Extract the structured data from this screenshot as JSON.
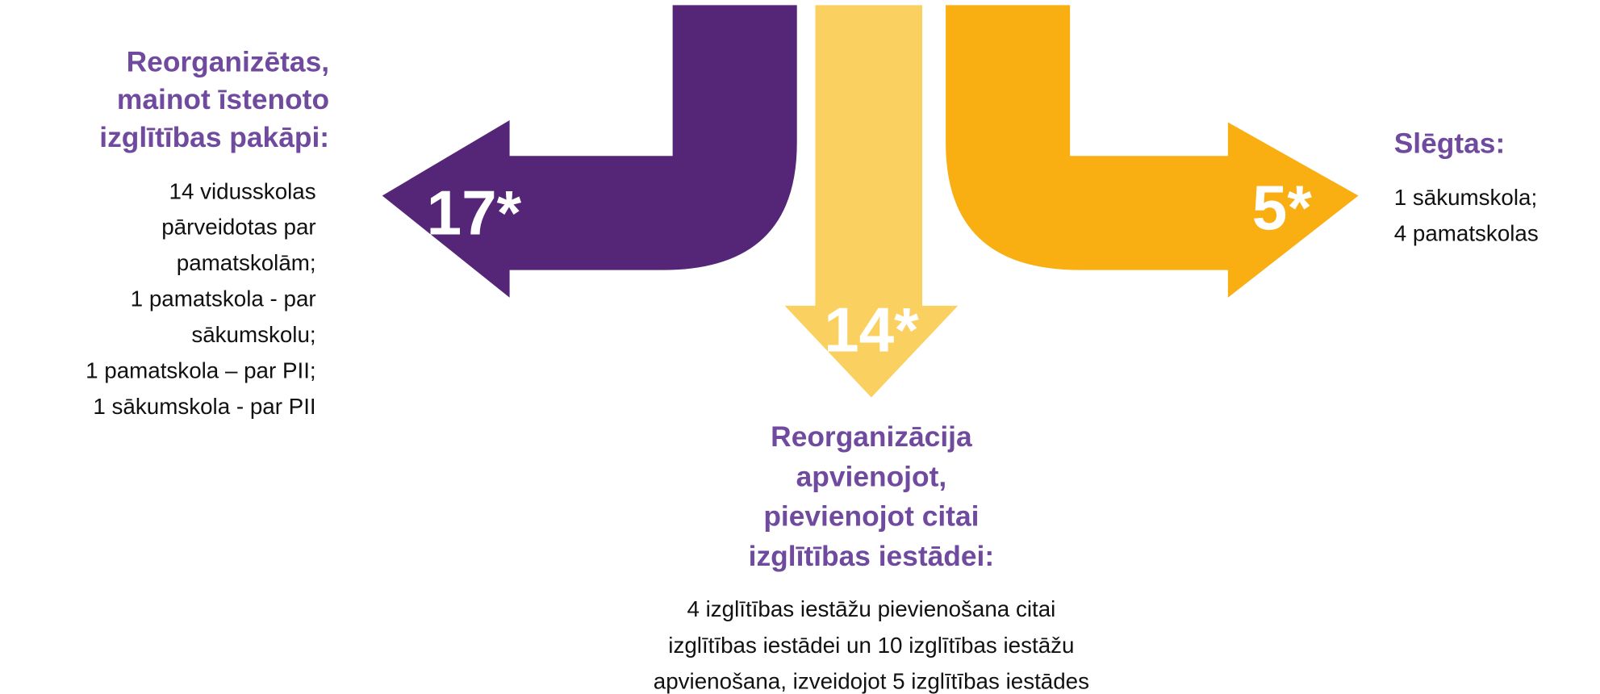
{
  "groups": [
    {
      "number": "17*",
      "heading": [
        "Reorganizētas,",
        "mainot īstenoto",
        "izglītības pakāpi:"
      ],
      "description": [
        "14 vidusskolas",
        "pārveidotas par",
        "pamatskolām;",
        "1 pamatskola - par",
        "sākumskolu;",
        "1 pamatskola – par PII;",
        "1 sākumskola - par PII"
      ]
    },
    {
      "number": "14*",
      "heading": [
        "Reorganizācija",
        "apvienojot,",
        "pievienojot citai",
        "izglītības iestādei:"
      ],
      "description": [
        "4 izglītības iestāžu pievienošana citai",
        "izglītības iestādei un 10 izglītības iestāžu",
        "apvienošana, izveidojot 5 izglītības iestādes"
      ]
    },
    {
      "number": "5*",
      "heading": [
        "Slēgtas:"
      ],
      "description": [
        "1 sākumskola;",
        "4 pamatskolas"
      ]
    }
  ]
}
